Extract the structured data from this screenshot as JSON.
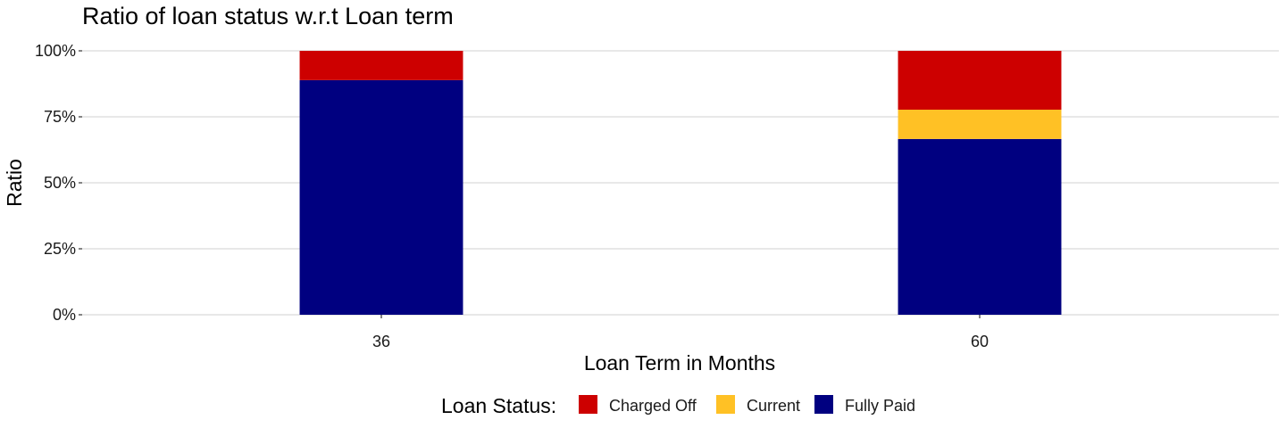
{
  "chart_data": {
    "type": "bar",
    "stacked": true,
    "title": "Ratio of loan status w.r.t Loan term",
    "xlabel": "Loan Term in Months",
    "ylabel": "Ratio",
    "categories": [
      "36",
      "60"
    ],
    "ylim": [
      0,
      1
    ],
    "yticks": [
      0,
      0.25,
      0.5,
      0.75,
      1.0
    ],
    "ytick_labels": [
      "0%",
      "25%",
      "50%",
      "75%",
      "100%"
    ],
    "series": [
      {
        "name": "Fully Paid",
        "color": "#000080",
        "values": [
          0.889,
          0.666
        ]
      },
      {
        "name": "Current",
        "color": "#FFC125",
        "values": [
          0.0,
          0.111
        ]
      },
      {
        "name": "Charged Off",
        "color": "#CD0000",
        "values": [
          0.111,
          0.223
        ]
      }
    ],
    "legend": {
      "title": "Loan Status:",
      "position": "bottom",
      "entries": [
        {
          "label": "Charged Off",
          "color": "#CD0000"
        },
        {
          "label": "Current",
          "color": "#FFC125"
        },
        {
          "label": "Fully Paid",
          "color": "#000080"
        }
      ]
    },
    "grid": true
  }
}
